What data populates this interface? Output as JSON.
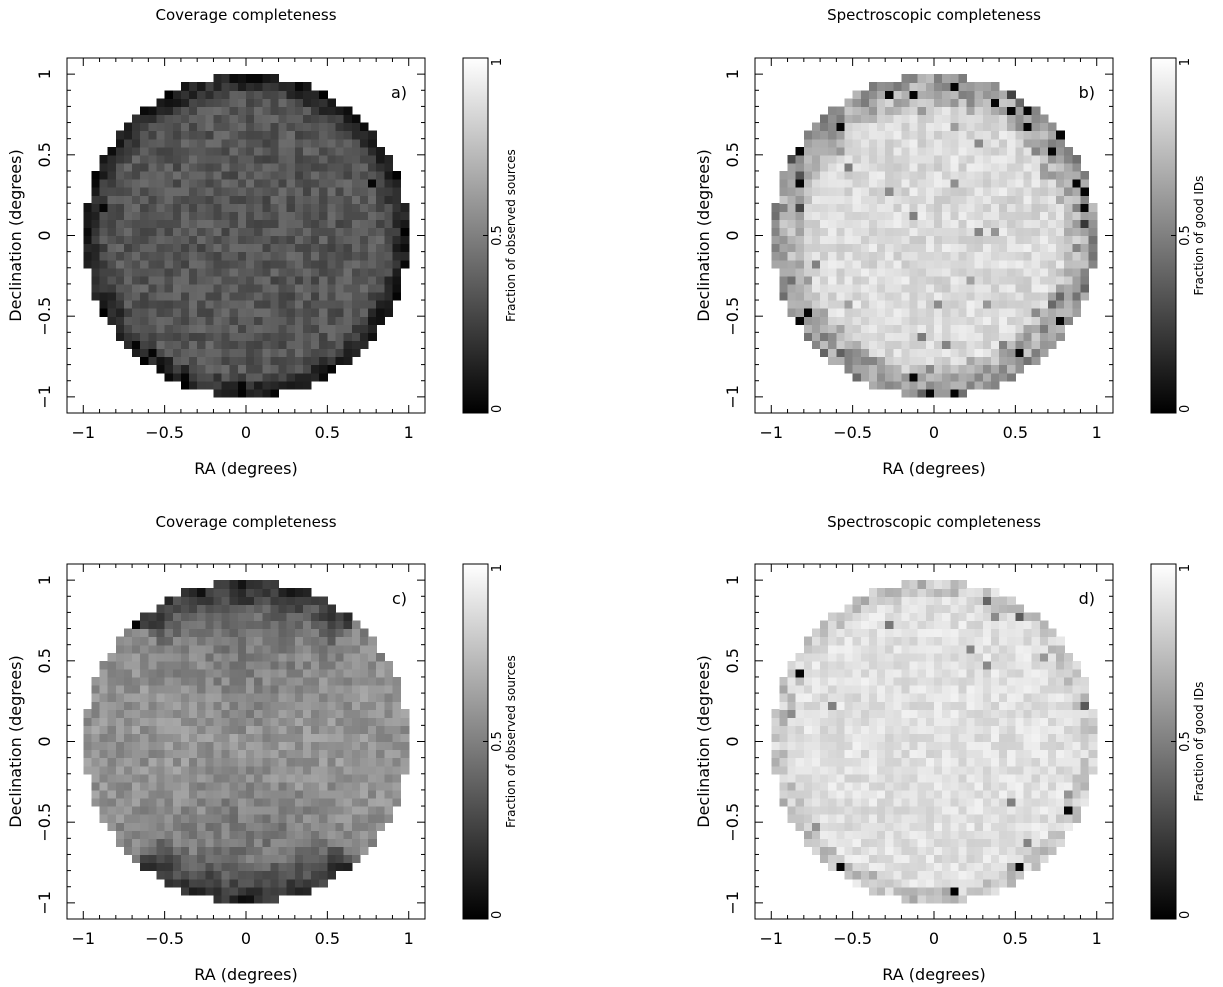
{
  "figure": {
    "background": "#ffffff",
    "colormap": [
      "#000000",
      "#ffffff"
    ]
  },
  "chart_data": [
    {
      "type": "heatmap",
      "panel_label": "a)",
      "title": "Coverage completeness",
      "xlabel": "RA (degrees)",
      "ylabel": "Declination (degrees)",
      "xlim": [
        -1.1,
        1.1
      ],
      "ylim": [
        -1.1,
        1.1
      ],
      "xticks": [
        -1,
        -0.5,
        0,
        0.5,
        1
      ],
      "yticks": [
        -1,
        -0.5,
        0,
        0.5,
        1
      ],
      "xtick_labels": [
        "−1",
        "−0.5",
        "0",
        "0.5",
        "1"
      ],
      "ytick_labels": [
        "−1",
        "−0.5",
        "0",
        "0.5",
        "1"
      ],
      "grid": false,
      "field": {
        "shape": "circle",
        "radius_deg": 1.0,
        "grid_cells": 40,
        "cell_deg": 0.05
      },
      "value_pattern": "outer-edge-low",
      "value_range_estimate": [
        0.0,
        0.6
      ],
      "colorbar": {
        "label": "Fraction of observed sources",
        "range": [
          0,
          1
        ],
        "ticks": [
          0,
          0.5,
          1
        ],
        "tick_labels": [
          "0",
          "0.5",
          "1"
        ]
      }
    },
    {
      "type": "heatmap",
      "panel_label": "b)",
      "title": "Spectroscopic completeness",
      "xlabel": "RA (degrees)",
      "ylabel": "Declination (degrees)",
      "xlim": [
        -1.1,
        1.1
      ],
      "ylim": [
        -1.1,
        1.1
      ],
      "xticks": [
        -1,
        -0.5,
        0,
        0.5,
        1
      ],
      "yticks": [
        -1,
        -0.5,
        0,
        0.5,
        1
      ],
      "xtick_labels": [
        "−1",
        "−0.5",
        "0",
        "0.5",
        "1"
      ],
      "ytick_labels": [
        "−1",
        "−0.5",
        "0",
        "0.5",
        "1"
      ],
      "grid": false,
      "field": {
        "shape": "circle",
        "radius_deg": 1.0,
        "grid_cells": 40,
        "cell_deg": 0.05
      },
      "value_pattern": "high-with-edge-dropouts",
      "value_range_estimate": [
        0.0,
        1.0
      ],
      "colorbar": {
        "label": "Fraction of good IDs",
        "range": [
          0,
          1
        ],
        "ticks": [
          0,
          0.5,
          1
        ],
        "tick_labels": [
          "0",
          "0.5",
          "1"
        ]
      }
    },
    {
      "type": "heatmap",
      "panel_label": "c)",
      "title": "Coverage completeness",
      "xlabel": "RA (degrees)",
      "ylabel": "Declination (degrees)",
      "xlim": [
        -1.1,
        1.1
      ],
      "ylim": [
        -1.1,
        1.1
      ],
      "xticks": [
        -1,
        -0.5,
        0,
        0.5,
        1
      ],
      "yticks": [
        -1,
        -0.5,
        0,
        0.5,
        1
      ],
      "xtick_labels": [
        "−1",
        "−0.5",
        "0",
        "0.5",
        "1"
      ],
      "ytick_labels": [
        "−1",
        "−0.5",
        "0",
        "0.5",
        "1"
      ],
      "grid": false,
      "field": {
        "shape": "circle",
        "radius_deg": 1.0,
        "grid_cells": 40,
        "cell_deg": 0.05
      },
      "value_pattern": "spoke-dark-top-bottom",
      "value_range_estimate": [
        0.0,
        0.8
      ],
      "colorbar": {
        "label": "Fraction of observed sources",
        "range": [
          0,
          1
        ],
        "ticks": [
          0,
          0.5,
          1
        ],
        "tick_labels": [
          "0",
          "0.5",
          "1"
        ]
      }
    },
    {
      "type": "heatmap",
      "panel_label": "d)",
      "title": "Spectroscopic completeness",
      "xlabel": "RA (degrees)",
      "ylabel": "Declination (degrees)",
      "xlim": [
        -1.1,
        1.1
      ],
      "ylim": [
        -1.1,
        1.1
      ],
      "xticks": [
        -1,
        -0.5,
        0,
        0.5,
        1
      ],
      "yticks": [
        -1,
        -0.5,
        0,
        0.5,
        1
      ],
      "xtick_labels": [
        "−1",
        "−0.5",
        "0",
        "0.5",
        "1"
      ],
      "ytick_labels": [
        "−1",
        "−0.5",
        "0",
        "0.5",
        "1"
      ],
      "grid": false,
      "field": {
        "shape": "circle",
        "radius_deg": 1.0,
        "grid_cells": 40,
        "cell_deg": 0.05
      },
      "value_pattern": "high-uniform",
      "value_range_estimate": [
        0.0,
        1.0
      ],
      "colorbar": {
        "label": "Fraction of good IDs",
        "range": [
          0,
          1
        ],
        "ticks": [
          0,
          0.5,
          1
        ],
        "tick_labels": [
          "0",
          "0.5",
          "1"
        ]
      }
    }
  ]
}
